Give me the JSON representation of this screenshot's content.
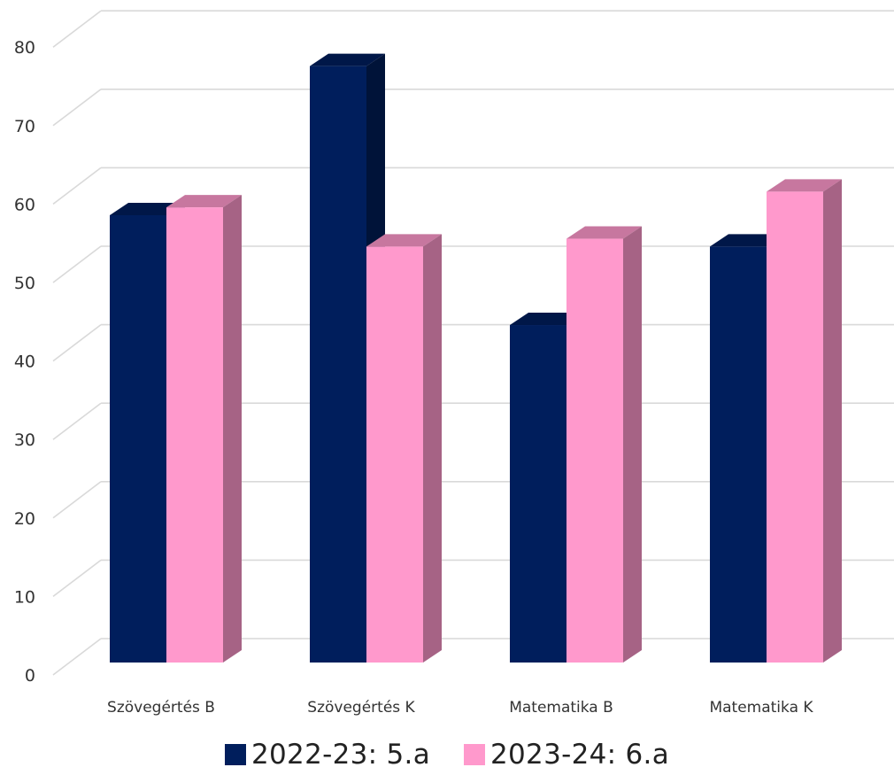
{
  "chart_data": {
    "type": "bar",
    "categories": [
      "Szövegértés B",
      "Szövegértés K",
      "Matematika B",
      "Matematika K"
    ],
    "series": [
      {
        "name": "2022-23: 5.a",
        "values": [
          57,
          76,
          43,
          53
        ],
        "color": "#001E5C"
      },
      {
        "name": "2023-24: 6.a",
        "values": [
          58,
          53,
          54,
          60
        ],
        "color": "#FF99CC"
      }
    ],
    "yticks": [
      0,
      10,
      20,
      30,
      40,
      50,
      60,
      70,
      80
    ],
    "ylim": [
      0,
      80
    ],
    "grid": true,
    "legend_position": "bottom"
  }
}
